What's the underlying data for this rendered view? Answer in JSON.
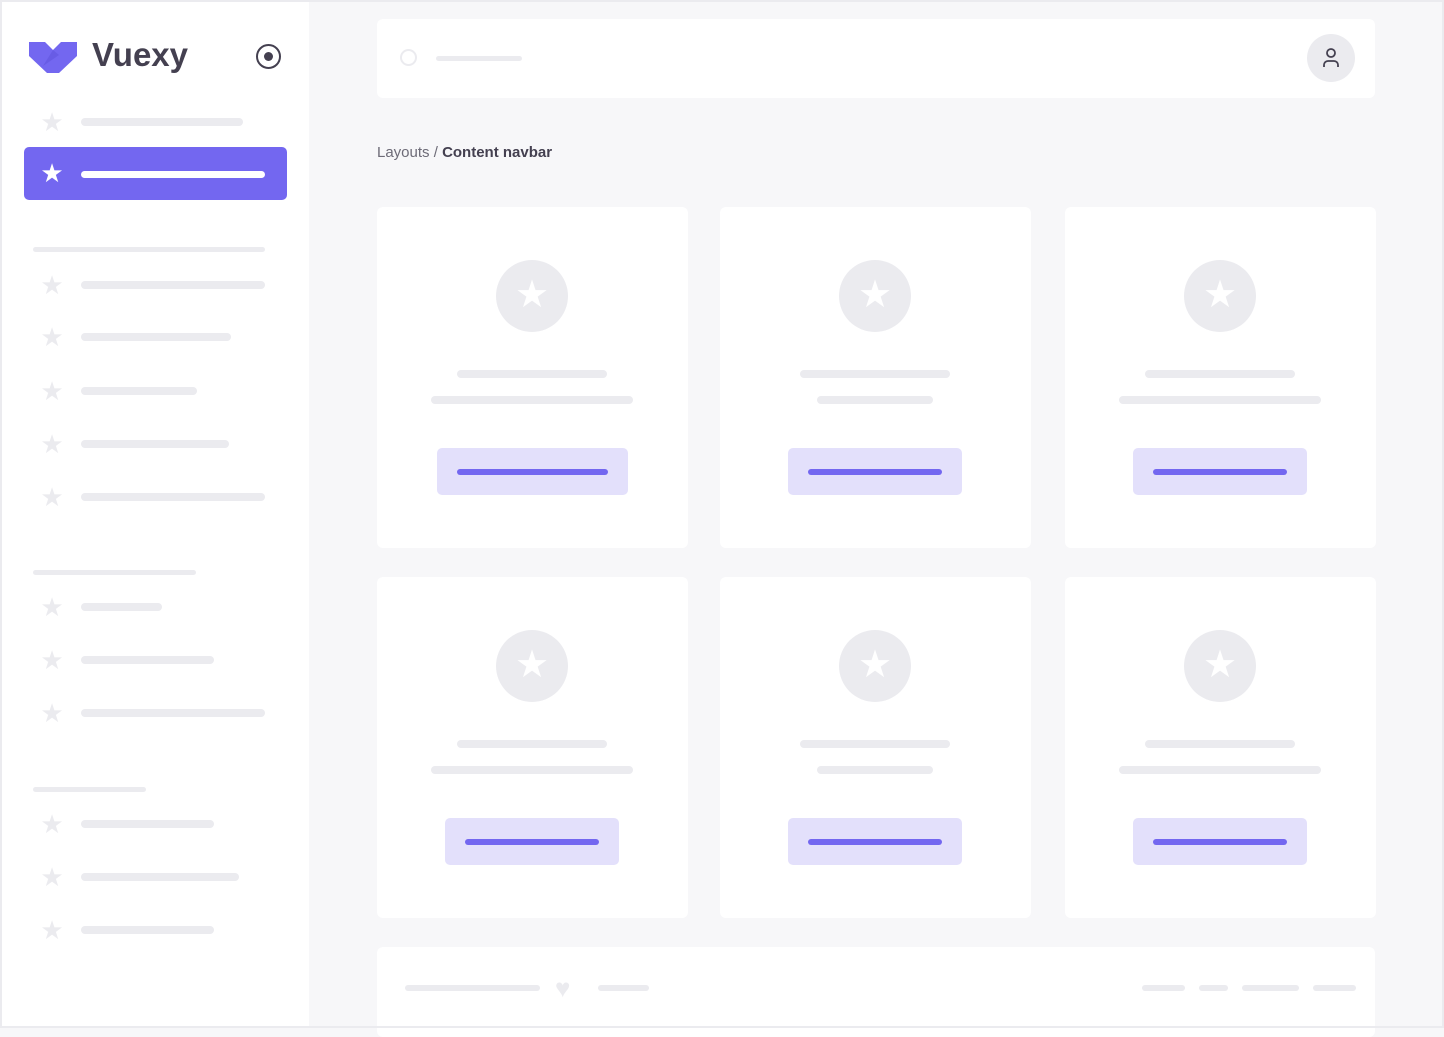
{
  "brand": {
    "name": "Vuexy",
    "color": "#7367f0",
    "logo_icon": "vuexy-logo-icon",
    "pin_icon": "radio-circle-icon"
  },
  "navbar": {
    "search_icon": "search-icon",
    "avatar_icon": "user-icon"
  },
  "breadcrumb": {
    "parent": "Layouts",
    "separator": " / ",
    "current": "Content navbar"
  },
  "sidebar": {
    "active_index": 1,
    "item_icon": "star-icon"
  },
  "cards": {
    "count": 6,
    "icon": "star-icon"
  },
  "footer": {
    "icon": "heart-icon"
  },
  "colors": {
    "accent": "#7367f0",
    "accent_light": "#e3e0fb",
    "skeleton": "#ebebef",
    "background": "#f7f7f9"
  }
}
